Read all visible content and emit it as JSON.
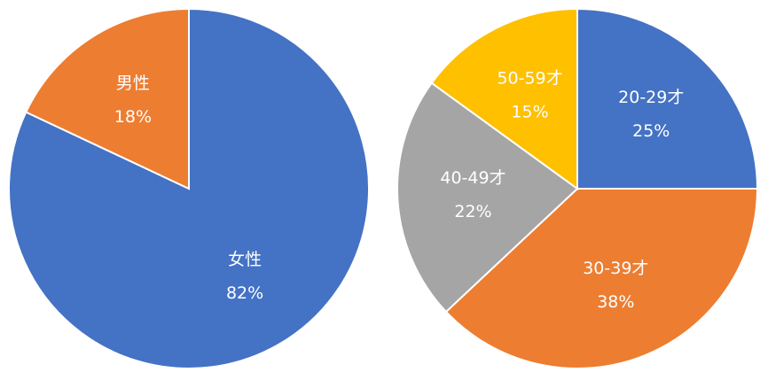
{
  "chart_data": [
    {
      "type": "pie",
      "categories": [
        "女性",
        "男性"
      ],
      "values": [
        82,
        18
      ],
      "value_labels": [
        "82%",
        "18%"
      ],
      "colors": [
        "#4472c4",
        "#ed7d31"
      ]
    },
    {
      "type": "pie",
      "categories": [
        "20-29才",
        "30-39才",
        "40-49才",
        "50-59才"
      ],
      "values": [
        25,
        38,
        22,
        15
      ],
      "value_labels": [
        "25%",
        "38%",
        "22%",
        "15%"
      ],
      "colors": [
        "#4472c4",
        "#ed7d31",
        "#a5a5a5",
        "#ffc000"
      ]
    }
  ]
}
